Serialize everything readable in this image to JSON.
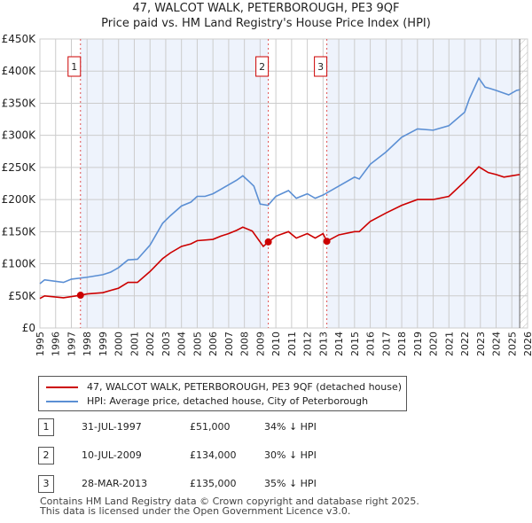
{
  "chart_data": {
    "type": "line",
    "title": "47, WALCOT WALK, PETERBOROUGH, PE3 9QF",
    "subtitle": "Price paid vs. HM Land Registry's House Price Index (HPI)",
    "xlim": [
      1995,
      2026
    ],
    "ylim": [
      0,
      450000
    ],
    "x_ticks": [
      "1995",
      "1996",
      "1997",
      "1998",
      "1999",
      "2000",
      "2001",
      "2002",
      "2003",
      "2004",
      "2005",
      "2006",
      "2007",
      "2008",
      "2009",
      "2010",
      "2011",
      "2012",
      "2013",
      "2014",
      "2015",
      "2016",
      "2017",
      "2018",
      "2019",
      "2020",
      "2021",
      "2022",
      "2023",
      "2024",
      "2025",
      "2026"
    ],
    "y_ticks": [
      {
        "v": 0,
        "label": "£0"
      },
      {
        "v": 50000,
        "label": "£50K"
      },
      {
        "v": 100000,
        "label": "£100K"
      },
      {
        "v": 150000,
        "label": "£150K"
      },
      {
        "v": 200000,
        "label": "£200K"
      },
      {
        "v": 250000,
        "label": "£250K"
      },
      {
        "v": 300000,
        "label": "£300K"
      },
      {
        "v": 350000,
        "label": "£350K"
      },
      {
        "v": 400000,
        "label": "£400K"
      },
      {
        "v": 450000,
        "label": "£450K"
      }
    ],
    "grid": true,
    "series": [
      {
        "name": "47, WALCOT WALK, PETERBOROUGH, PE3 9QF (detached house)",
        "color": "#cc0000",
        "x": [
          1995,
          1995.3,
          1996.5,
          1997.58,
          1998,
          1999,
          2000,
          2000.6,
          2001.2,
          2002,
          2002.8,
          2003.3,
          2004,
          2004.6,
          2005,
          2006,
          2006.5,
          2007,
          2007.5,
          2007.9,
          2008.5,
          2009.2,
          2009.53,
          2010,
          2010.8,
          2011.3,
          2012,
          2012.5,
          2013,
          2013.24,
          2014,
          2015,
          2015.3,
          2016,
          2017,
          2018,
          2019,
          2020,
          2021,
          2022,
          2022.9,
          2023.5,
          2024,
          2024.5,
          2025,
          2025.5
        ],
        "values": [
          46000,
          50000,
          47000,
          51000,
          53000,
          55000,
          62000,
          71000,
          71000,
          88000,
          108000,
          117000,
          127000,
          131000,
          136000,
          138000,
          143000,
          147000,
          152000,
          157000,
          151000,
          127000,
          134000,
          143000,
          150000,
          140000,
          147000,
          140000,
          147000,
          135000,
          145000,
          150000,
          150000,
          166000,
          179000,
          191000,
          200000,
          200000,
          205000,
          228000,
          251000,
          242000,
          239000,
          235000,
          237000,
          239000
        ]
      },
      {
        "name": "HPI: Average price, detached house, City of Peterborough",
        "color": "#5b8fd4",
        "x": [
          1995,
          1995.3,
          1996.5,
          1997,
          1998,
          1999,
          1999.5,
          2000,
          2000.6,
          2001.2,
          2002,
          2002.8,
          2003.3,
          2004,
          2004.6,
          2005,
          2005.5,
          2006,
          2006.5,
          2007,
          2007.5,
          2007.9,
          2008.3,
          2008.6,
          2009,
          2009.5,
          2010,
          2010.8,
          2011.3,
          2012,
          2012.5,
          2013,
          2014,
          2015,
          2015.3,
          2016,
          2017,
          2018,
          2019,
          2020,
          2021,
          2022,
          2022.3,
          2022.9,
          2023.3,
          2023.6,
          2024,
          2024.8,
          2025.3,
          2025.5
        ],
        "values": [
          69000,
          75000,
          71000,
          76000,
          79000,
          83000,
          87000,
          94000,
          106000,
          107000,
          129000,
          163000,
          175000,
          190000,
          196000,
          205000,
          205000,
          209000,
          216000,
          223000,
          230000,
          237000,
          228000,
          221000,
          193000,
          191000,
          205000,
          214000,
          202000,
          209000,
          202000,
          207000,
          221000,
          235000,
          232000,
          255000,
          274000,
          297000,
          310000,
          308000,
          315000,
          336000,
          357000,
          389000,
          375000,
          373000,
          370000,
          363000,
          370000,
          371000
        ]
      }
    ],
    "sales": [
      {
        "label": "1",
        "x": 1997.58,
        "value": 51000
      },
      {
        "label": "2",
        "x": 2009.52,
        "value": 134000
      },
      {
        "label": "3",
        "x": 2013.24,
        "value": 135000
      }
    ],
    "hatch_from": 2025.5
  },
  "legend": {
    "red": "47, WALCOT WALK, PETERBOROUGH, PE3 9QF (detached house)",
    "blue": "HPI: Average price, detached house, City of Peterborough"
  },
  "transactions": [
    {
      "n": "1",
      "date": "31-JUL-1997",
      "price": "£51,000",
      "delta": "34% ↓ HPI"
    },
    {
      "n": "2",
      "date": "10-JUL-2009",
      "price": "£134,000",
      "delta": "30% ↓ HPI"
    },
    {
      "n": "3",
      "date": "28-MAR-2013",
      "price": "£135,000",
      "delta": "35% ↓ HPI"
    }
  ],
  "footer": {
    "line1": "Contains HM Land Registry data © Crown copyright and database right 2025.",
    "line2": "This data is licensed under the Open Government Licence v3.0."
  }
}
